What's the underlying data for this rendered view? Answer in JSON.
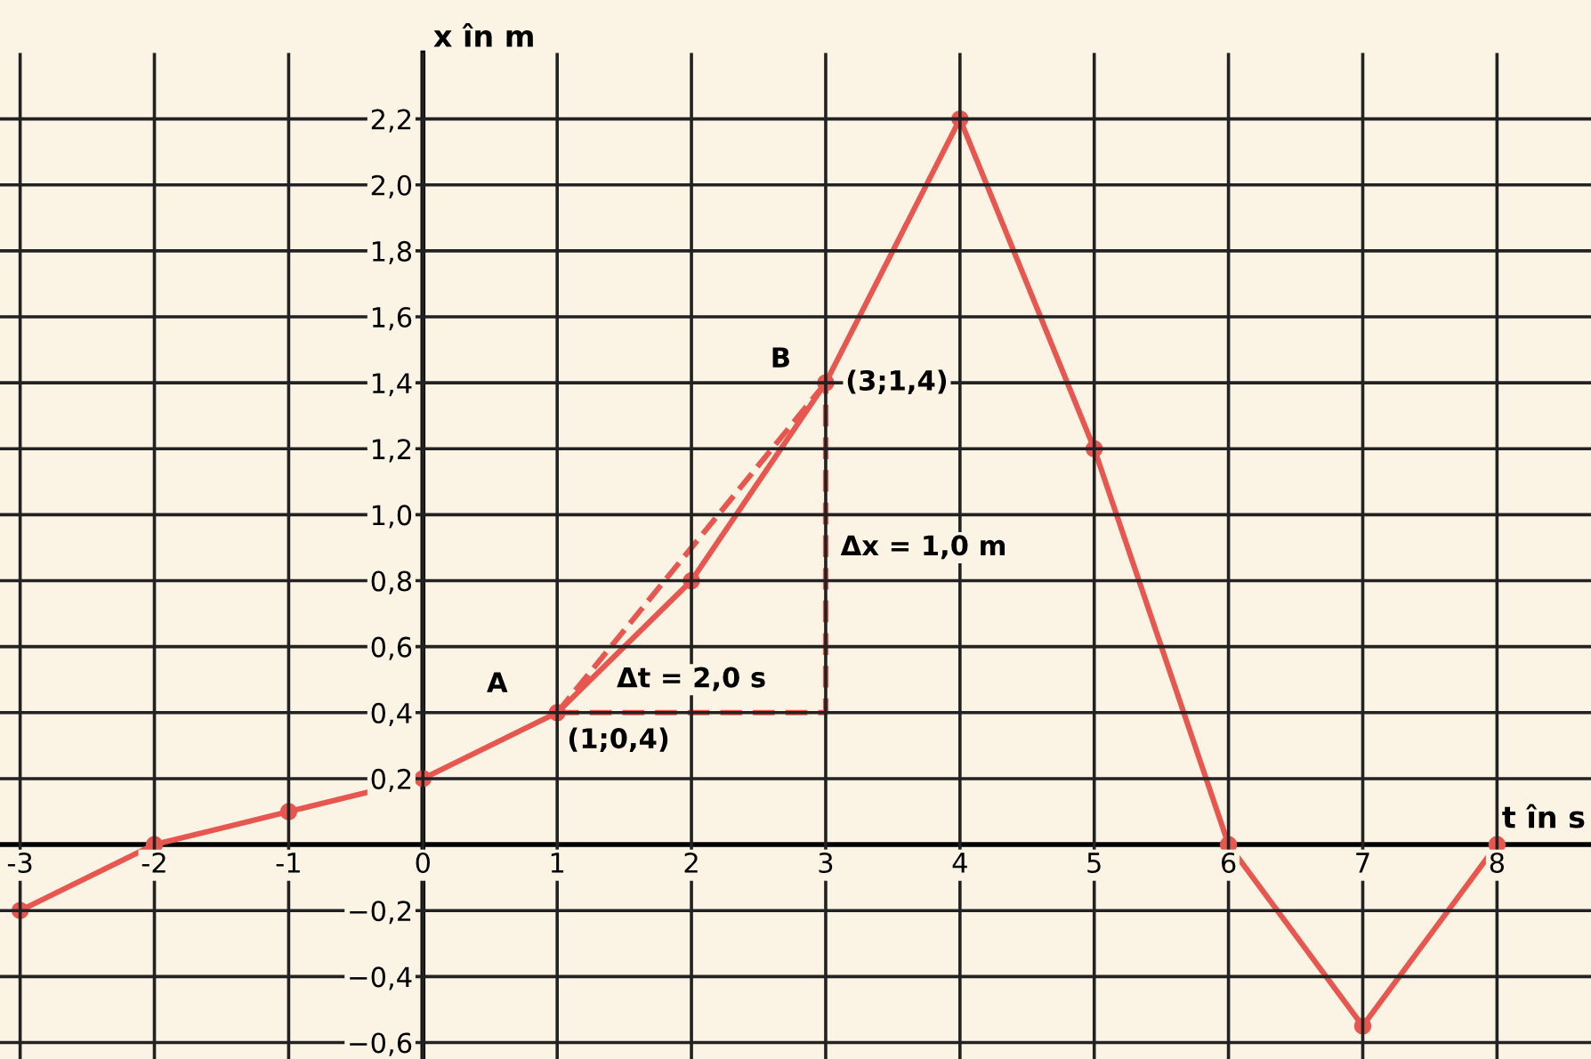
{
  "chart_data": {
    "type": "line",
    "xlabel": "t în s",
    "ylabel": "x în m",
    "x": [
      -3,
      -2,
      -1,
      0,
      1,
      2,
      3,
      4,
      5,
      6,
      7,
      8
    ],
    "series": [
      {
        "color": "#e8574f",
        "values": [
          -0.2,
          0,
          0.1,
          0.2,
          0.4,
          0.8,
          1.4,
          2.2,
          1.2,
          0,
          -0.55,
          0
        ],
        "marker": "circle",
        "line_style": "solid"
      },
      {
        "color": "#e8574f",
        "x": [
          1,
          3
        ],
        "values": [
          0.4,
          1.4
        ],
        "marker": "none",
        "line_style": "dashed"
      }
    ],
    "xlim": [
      -3.15,
      8.7
    ],
    "ylim": [
      -0.65,
      2.4
    ],
    "xticks": [
      -3,
      -2,
      -1,
      0,
      1,
      2,
      3,
      4,
      5,
      6,
      7,
      8
    ],
    "yticks": [
      {
        "value": -0.6,
        "label": "−0,6"
      },
      {
        "value": -0.4,
        "label": "−0,4"
      },
      {
        "value": -0.2,
        "label": "−0,2"
      },
      {
        "value": 0.2,
        "label": "0,2"
      },
      {
        "value": 0.4,
        "label": "0,4"
      },
      {
        "value": 0.6,
        "label": "0,6"
      },
      {
        "value": 0.8,
        "label": "0,8"
      },
      {
        "value": 1.0,
        "label": "1,0"
      },
      {
        "value": 1.2,
        "label": "1,2"
      },
      {
        "value": 1.4,
        "label": "1,4"
      },
      {
        "value": 1.6,
        "label": "1,6"
      },
      {
        "value": 1.8,
        "label": "1,8"
      },
      {
        "value": 2.0,
        "label": "2,0"
      },
      {
        "value": 2.2,
        "label": "2,2"
      }
    ],
    "grid": true,
    "annotations": [
      "A",
      {
        "text": "(1;0,4)",
        "x": 1,
        "y": 0.4
      },
      "B",
      {
        "text": "(3;1,4)",
        "x": 3,
        "y": 1.4
      },
      "Δt = 2,0 s",
      "Δx = 1,0 m"
    ]
  }
}
